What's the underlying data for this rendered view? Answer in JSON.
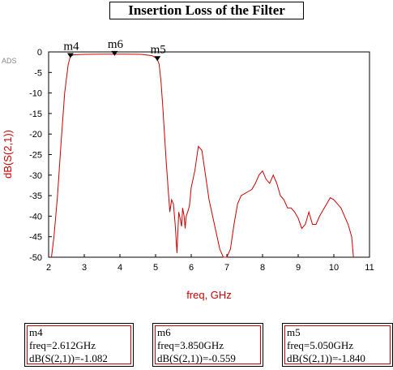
{
  "title": "Insertion Loss of the Filter",
  "ads_label": "ADS",
  "chart_data": {
    "type": "line",
    "xlabel": "freq, GHz",
    "ylabel": "dB(S(2,1))",
    "xlim": [
      2,
      11
    ],
    "ylim": [
      -50,
      0
    ],
    "xticks": [
      "2",
      "3",
      "4",
      "5",
      "6",
      "7",
      "8",
      "9",
      "10",
      "11"
    ],
    "yticks": [
      "0",
      "-5",
      "-10",
      "-15",
      "-20",
      "-25",
      "-30",
      "-35",
      "-40",
      "-45",
      "-50"
    ],
    "grid": false,
    "color": "#cc0000",
    "series": [
      {
        "x": [
          2.08,
          2.15,
          2.25,
          2.35,
          2.45,
          2.55,
          2.61,
          2.7,
          3.0,
          3.5,
          3.85,
          4.2,
          4.6,
          4.9,
          5.0,
          5.05,
          5.1,
          5.15,
          5.2,
          5.25,
          5.3,
          5.35,
          5.4,
          5.45,
          5.5,
          5.55,
          5.6,
          5.65,
          5.7,
          5.73,
          5.76,
          5.8,
          5.83,
          5.86,
          5.9,
          5.95,
          6.0,
          6.1,
          6.2,
          6.3,
          6.4,
          6.5,
          6.6,
          6.7,
          6.8,
          6.9,
          7.0,
          7.1,
          7.2,
          7.3,
          7.4,
          7.5,
          7.6,
          7.7,
          7.8,
          7.9,
          8.0,
          8.1,
          8.2,
          8.3,
          8.4,
          8.5,
          8.6,
          8.7,
          8.8,
          8.9,
          9.0,
          9.1,
          9.2,
          9.3,
          9.4,
          9.5,
          9.6,
          9.7,
          9.8,
          9.9,
          10.0,
          10.1,
          10.2,
          10.3,
          10.4,
          10.5,
          10.55
        ],
        "y": [
          -50,
          -45,
          -35,
          -22,
          -10,
          -3,
          -1.08,
          -0.7,
          -0.6,
          -0.56,
          -0.559,
          -0.56,
          -0.6,
          -0.9,
          -1.4,
          -1.84,
          -3,
          -7,
          -13,
          -20,
          -27,
          -33,
          -39,
          -36,
          -37,
          -42,
          -49,
          -39,
          -41,
          -42.5,
          -38,
          -40,
          -43,
          -40,
          -39,
          -37.5,
          -33,
          -29,
          -23,
          -24,
          -30,
          -36,
          -40,
          -44,
          -48,
          -50,
          -50,
          -48,
          -42,
          -37,
          -35,
          -34.5,
          -34,
          -33.5,
          -32,
          -30,
          -29,
          -31,
          -32,
          -30,
          -32,
          -35,
          -36,
          -38,
          -38,
          -39,
          -40.5,
          -43,
          -42,
          -39,
          -42,
          -42,
          -40,
          -38.5,
          -37,
          -35.5,
          -36,
          -37,
          -38,
          -40,
          -42,
          -45,
          -50
        ]
      }
    ],
    "markers": [
      {
        "name": "m4",
        "x": 2.612,
        "y": -1.082
      },
      {
        "name": "m6",
        "x": 3.85,
        "y": -0.559
      },
      {
        "name": "m5",
        "x": 5.05,
        "y": -1.84
      }
    ]
  },
  "marker_boxes": [
    {
      "name": "m4",
      "freq": "freq=2.612GHz",
      "value": "dB(S(2,1))=-1.082"
    },
    {
      "name": "m6",
      "freq": "freq=3.850GHz",
      "value": "dB(S(2,1))=-0.559"
    },
    {
      "name": "m5",
      "freq": "freq=5.050GHz",
      "value": "dB(S(2,1))=-1.840"
    }
  ]
}
